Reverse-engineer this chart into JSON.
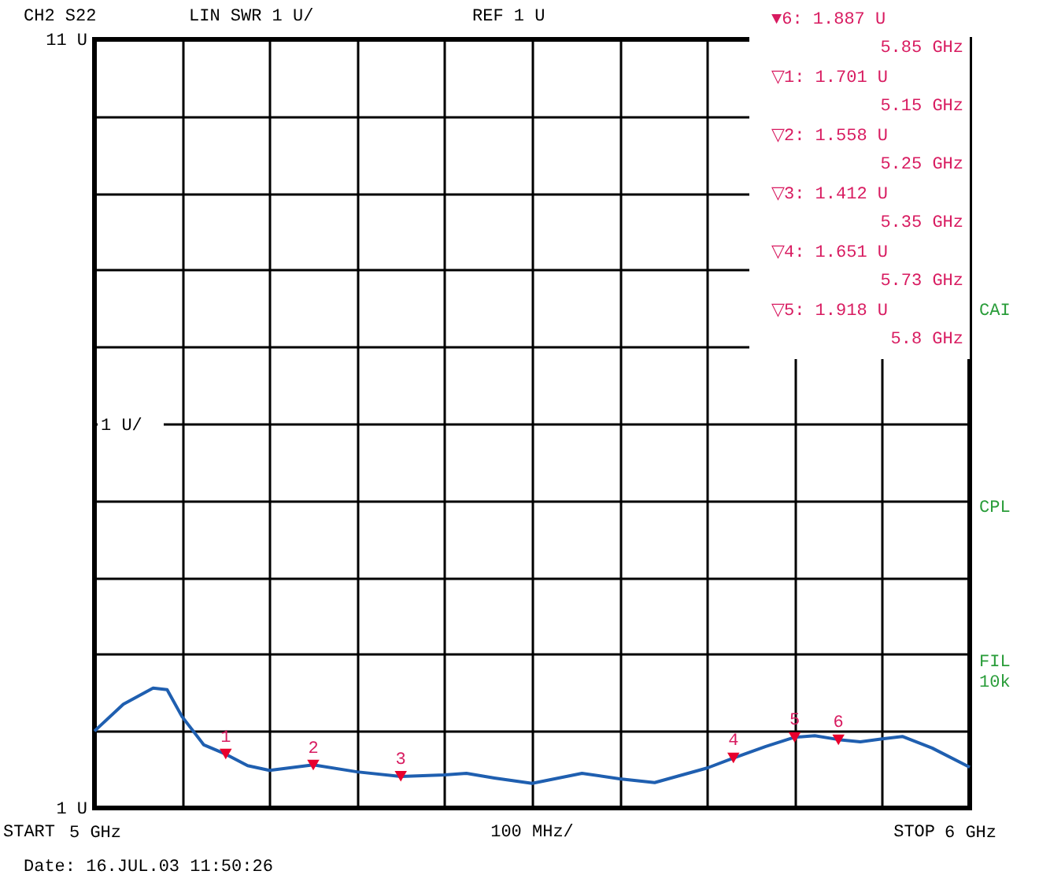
{
  "chart_data": {
    "type": "line",
    "xlim": [
      5,
      6
    ],
    "ylim": [
      1,
      11
    ],
    "xticks": [
      {
        "value": 5,
        "label": "5 GHz"
      },
      {
        "value": 5.1,
        "label": null
      },
      {
        "value": 5.2,
        "label": null
      },
      {
        "value": 5.3,
        "label": null
      },
      {
        "value": 5.4,
        "label": null
      },
      {
        "value": 5.5,
        "label": null
      },
      {
        "value": 5.6,
        "label": null
      },
      {
        "value": 5.7,
        "label": null
      },
      {
        "value": 5.8,
        "label": null
      },
      {
        "value": 5.9,
        "label": null
      },
      {
        "value": 6,
        "label": "6 GHz"
      }
    ],
    "yticks": [
      {
        "value": 1,
        "label": "1 U"
      },
      {
        "value": 2,
        "label": null
      },
      {
        "value": 3,
        "label": null
      },
      {
        "value": 4,
        "label": null
      },
      {
        "value": 5,
        "label": null
      },
      {
        "value": 6,
        "label": null
      },
      {
        "value": 7,
        "label": null
      },
      {
        "value": 8,
        "label": null
      },
      {
        "value": 9,
        "label": null
      },
      {
        "value": 10,
        "label": null
      },
      {
        "value": 11,
        "label": "11 U"
      }
    ],
    "grid": true,
    "xlabel": "100 MHz/",
    "series": [
      {
        "color": "#1f5fb0",
        "marker": "none",
        "x": [
          5.0,
          5.033,
          5.067,
          5.083,
          5.1,
          5.125,
          5.15,
          5.175,
          5.2,
          5.25,
          5.3,
          5.35,
          5.4,
          5.425,
          5.457,
          5.5,
          5.557,
          5.6,
          5.64,
          5.7,
          5.73,
          5.767,
          5.8,
          5.823,
          5.85,
          5.875,
          5.9,
          5.923,
          5.957,
          6.0
        ],
        "values": [
          2.0,
          2.35,
          2.56,
          2.54,
          2.19,
          1.82,
          1.7,
          1.55,
          1.49,
          1.56,
          1.47,
          1.41,
          1.43,
          1.45,
          1.39,
          1.32,
          1.45,
          1.38,
          1.33,
          1.52,
          1.65,
          1.8,
          1.92,
          1.94,
          1.89,
          1.86,
          1.9,
          1.93,
          1.78,
          1.53
        ]
      },
      {
        "type": "scatter",
        "color": "#e8002d",
        "marker": "triangle",
        "x": [
          5.85,
          5.15,
          5.25,
          5.35,
          5.73,
          5.8
        ],
        "values": [
          1.887,
          1.701,
          1.558,
          1.412,
          1.651,
          1.918
        ]
      }
    ],
    "annotations": [
      "CH2 S22",
      "LIN SWR 1 U/",
      "REF 1 U",
      "▼6:    1.887  U",
      "5.85 GHz",
      "▽1:    1.701  U",
      "5.15 GHz",
      "▽2:    1.558  U",
      "5.25 GHz",
      "▽3:    1.412  U",
      "5.35 GHz",
      "▽4:    1.651  U",
      "5.73 GHz",
      "▽5:    1.918  U",
      "5.8 GHz",
      "CAI",
      "CPL",
      "FIL",
      "10k",
      "Date:      16.JUL.03  11:50:26",
      "START",
      "STOP",
      "1 U/",
      {
        "text": "6",
        "x": 5.85,
        "y": 1.887
      },
      {
        "text": "1",
        "x": 5.15,
        "y": 1.701
      },
      {
        "text": "2",
        "x": 5.25,
        "y": 1.558
      },
      {
        "text": "3",
        "x": 5.35,
        "y": 1.412
      },
      {
        "text": "4",
        "x": 5.73,
        "y": 1.651
      },
      {
        "text": "5",
        "x": 5.8,
        "y": 1.918
      }
    ]
  }
}
